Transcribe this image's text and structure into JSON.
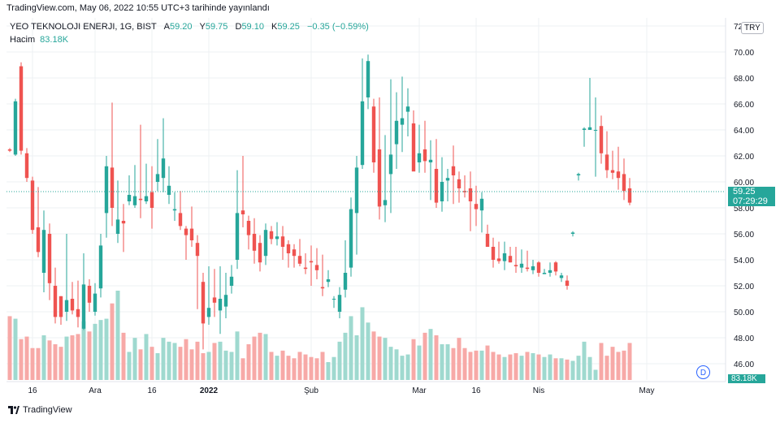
{
  "header": {
    "published": "TradingView.com, May 06, 2022 10:55 UTC+3 tarihinde yayınlandı"
  },
  "legend": {
    "symbol": "YEO TEKNOLOJI ENERJI, 1G, BIST",
    "open_label": "A",
    "open": "59.20",
    "high_label": "Y",
    "high": "59.75",
    "low_label": "D",
    "low": "59.10",
    "close_label": "K",
    "close": "59.25",
    "change": "−0.35 (−0.59%)",
    "volume_label": "Hacim",
    "volume": "83.18K",
    "currency": "TRY"
  },
  "price_tag": {
    "price": "59.25",
    "countdown": "07:29:29"
  },
  "volume_tag": "83.18K",
  "footer": {
    "brand": "TradingView"
  },
  "badge": "D",
  "colors": {
    "up": "#26a69a",
    "down": "#ef5350",
    "up_vol": "#9fd9cf",
    "down_vol": "#f7a9a7",
    "grid": "#eef0f3"
  },
  "chart_data": {
    "type": "candlestick",
    "ylim": [
      45,
      72
    ],
    "y_ticks": [
      "46.00",
      "48.00",
      "50.00",
      "52.00",
      "54.00",
      "56.00",
      "58.00",
      "60.00",
      "62.00",
      "64.00",
      "66.00",
      "68.00",
      "70.00",
      "72"
    ],
    "x_labels": [
      {
        "label": "16",
        "index": 4
      },
      {
        "label": "Ara",
        "index": 15
      },
      {
        "label": "16",
        "index": 25
      },
      {
        "label": "2022",
        "index": 35
      },
      {
        "label": "Şub",
        "index": 53
      },
      {
        "label": "Mar",
        "index": 72
      },
      {
        "label": "16",
        "index": 82
      },
      {
        "label": "Nis",
        "index": 93
      },
      {
        "label": "May",
        "index": 112
      }
    ],
    "current_price": 59.25,
    "candles": [
      [
        62.5,
        62.6,
        62.3,
        62.4,
        5
      ],
      [
        62.1,
        66.4,
        62.0,
        66.2,
        4.8
      ],
      [
        68.9,
        69.2,
        62.1,
        62.4,
        3.2
      ],
      [
        62.2,
        62.6,
        60.0,
        60.3,
        3.4
      ],
      [
        60.1,
        60.4,
        56.0,
        56.3,
        2.5
      ],
      [
        56.5,
        59.6,
        54.2,
        54.6,
        2.5
      ],
      [
        53.0,
        57.8,
        51.5,
        56.3,
        3.5
      ],
      [
        56.0,
        56.8,
        50.9,
        52.2,
        3.1
      ],
      [
        52.0,
        53.4,
        49.1,
        49.6,
        2.8
      ],
      [
        51.2,
        51.2,
        49.0,
        49.6,
        2.6
      ],
      [
        50.0,
        56.0,
        49.3,
        50.9,
        3.4
      ],
      [
        51.0,
        52.3,
        49.8,
        50.1,
        3.5
      ],
      [
        50.2,
        52.4,
        48.8,
        49.6,
        3.6
      ],
      [
        48.7,
        54.5,
        48.6,
        52.1,
        4.6
      ],
      [
        52.0,
        52.5,
        50.0,
        50.7,
        3.8
      ],
      [
        50.0,
        52.2,
        49.7,
        51.4,
        4.4
      ],
      [
        51.8,
        56.0,
        51.1,
        55.1,
        4.7
      ],
      [
        57.6,
        62.0,
        55.7,
        61.2,
        4.8
      ],
      [
        61.1,
        66.1,
        56.6,
        58.0,
        6.0
      ],
      [
        56.0,
        60.1,
        55.3,
        57.1,
        7.0
      ],
      [
        57.0,
        58.3,
        54.6,
        56.8,
        3.7
      ],
      [
        58.5,
        60.5,
        58.2,
        59.0,
        2.2
      ],
      [
        58.2,
        61.3,
        58.0,
        58.9,
        3.3
      ],
      [
        58.7,
        64.4,
        57.2,
        58.6,
        2.4
      ],
      [
        58.5,
        61.4,
        58.3,
        58.9,
        3.6
      ],
      [
        59.2,
        61.2,
        56.4,
        58.0,
        2.6
      ],
      [
        60.0,
        63.3,
        59.3,
        60.6,
        2.1
      ],
      [
        60.3,
        64.9,
        59.2,
        61.8,
        3.3
      ],
      [
        59.0,
        61.2,
        58.3,
        59.7,
        3.0
      ],
      [
        57.8,
        59.2,
        57.0,
        57.9,
        2.9
      ],
      [
        57.6,
        59.3,
        56.3,
        56.6,
        2.6
      ],
      [
        56.4,
        56.6,
        54.0,
        55.9,
        3.2
      ],
      [
        56.4,
        58.1,
        55.0,
        55.5,
        2.4
      ],
      [
        55.3,
        55.9,
        50.2,
        54.3,
        3.0
      ],
      [
        52.3,
        53.0,
        47.1,
        49.1,
        2.1
      ],
      [
        49.6,
        53.5,
        49.0,
        50.3,
        2.2
      ],
      [
        51.1,
        53.3,
        49.6,
        50.7,
        2.9
      ],
      [
        50.1,
        53.5,
        48.3,
        51.0,
        3.0
      ],
      [
        50.4,
        53.0,
        49.5,
        51.3,
        2.3
      ],
      [
        52.0,
        53.6,
        51.4,
        52.7,
        2.2
      ],
      [
        54.0,
        60.9,
        53.3,
        57.6,
        3.8
      ],
      [
        57.8,
        62.0,
        56.5,
        57.5,
        1.7
      ],
      [
        57.0,
        57.4,
        54.8,
        55.9,
        2.8
      ],
      [
        56.0,
        57.2,
        53.7,
        54.7,
        3.4
      ],
      [
        55.3,
        55.9,
        53.1,
        53.8,
        3.7
      ],
      [
        54.3,
        56.8,
        53.6,
        56.3,
        3.6
      ],
      [
        56.2,
        56.6,
        55.2,
        55.6,
        2.2
      ],
      [
        55.6,
        56.9,
        55.1,
        55.8,
        1.9
      ],
      [
        55.8,
        56.6,
        54.0,
        55.0,
        2.3
      ],
      [
        55.2,
        55.5,
        53.4,
        54.5,
        1.9
      ],
      [
        54.8,
        55.2,
        53.4,
        54.3,
        1.7
      ],
      [
        54.3,
        55.6,
        53.5,
        53.7,
        2.2
      ],
      [
        53.4,
        54.5,
        52.9,
        53.3,
        2.0
      ],
      [
        53.9,
        55.1,
        52.0,
        53.8,
        1.8
      ],
      [
        53.6,
        54.9,
        52.5,
        53.2,
        1.7
      ],
      [
        51.9,
        54.4,
        51.2,
        51.8,
        2.2
      ],
      [
        52.3,
        53.2,
        51.9,
        52.5,
        1.4
      ],
      [
        51.0,
        51.2,
        50.3,
        51.0,
        1.8
      ],
      [
        50.0,
        51.9,
        49.5,
        51.3,
        3.0
      ],
      [
        51.7,
        55.5,
        51.1,
        53.0,
        3.7
      ],
      [
        53.4,
        58.8,
        52.7,
        57.9,
        5.0
      ],
      [
        57.6,
        62.0,
        54.4,
        61.1,
        3.5
      ],
      [
        61.3,
        69.5,
        61.0,
        66.2,
        5.7
      ],
      [
        66.5,
        69.8,
        65.6,
        69.3,
        4.5
      ],
      [
        65.8,
        66.4,
        60.7,
        61.5,
        3.8
      ],
      [
        62.5,
        66.5,
        57.1,
        58.1,
        3.4
      ],
      [
        58.2,
        63.6,
        56.9,
        58.6,
        3.3
      ],
      [
        60.6,
        67.9,
        57.6,
        62.1,
        2.6
      ],
      [
        62.9,
        66.9,
        61.0,
        64.7,
        2.4
      ],
      [
        64.4,
        68.1,
        62.3,
        64.9,
        1.9
      ],
      [
        65.4,
        67.2,
        63.5,
        65.8,
        2.0
      ],
      [
        64.5,
        65.5,
        60.9,
        60.8,
        3.2
      ],
      [
        61.5,
        64.4,
        60.7,
        62.2,
        2.7
      ],
      [
        62.5,
        64.7,
        60.7,
        61.6,
        3.7
      ],
      [
        61.5,
        63.2,
        58.6,
        61.7,
        4.0
      ],
      [
        61.0,
        63.3,
        58.0,
        58.4,
        3.5
      ],
      [
        58.5,
        61.9,
        57.7,
        60.0,
        2.8
      ],
      [
        60.1,
        61.0,
        58.5,
        60.3,
        2.8
      ],
      [
        61.2,
        62.8,
        58.3,
        60.5,
        2.5
      ],
      [
        60.2,
        60.8,
        58.4,
        59.5,
        3.3
      ],
      [
        59.3,
        60.5,
        58.8,
        59.2,
        2.5
      ],
      [
        59.5,
        60.8,
        56.2,
        58.5,
        2.2
      ],
      [
        58.3,
        59.7,
        56.6,
        57.9,
        2.3
      ],
      [
        57.8,
        59.2,
        56.1,
        58.7,
        2.3
      ],
      [
        56.0,
        56.7,
        55.2,
        55.0,
        2.7
      ],
      [
        55.0,
        55.7,
        53.4,
        54.0,
        2.2
      ],
      [
        54.1,
        55.4,
        53.7,
        53.9,
        2.0
      ],
      [
        53.9,
        55.4,
        53.2,
        54.5,
        1.8
      ],
      [
        54.3,
        55.0,
        53.8,
        53.8,
        2.0
      ],
      [
        53.6,
        55.0,
        53.0,
        53.5,
        2.1
      ],
      [
        53.4,
        54.8,
        53.0,
        53.7,
        1.9
      ],
      [
        53.4,
        54.7,
        53.1,
        53.3,
        2.2
      ],
      [
        53.2,
        54.0,
        52.9,
        53.5,
        2.1
      ],
      [
        53.8,
        53.9,
        52.7,
        53.0,
        2.0
      ],
      [
        52.9,
        53.3,
        52.9,
        53.0,
        1.8
      ],
      [
        53.0,
        53.8,
        52.7,
        53.2,
        2.0
      ],
      [
        53.8,
        53.9,
        52.8,
        53.1,
        1.7
      ],
      [
        52.6,
        53.0,
        52.3,
        52.8,
        1.7
      ],
      [
        52.4,
        52.8,
        51.7,
        52.0,
        1.6
      ],
      [
        56.0,
        56.2,
        55.8,
        56.1,
        1.5
      ],
      [
        60.5,
        60.7,
        60.1,
        60.6,
        1.9
      ],
      [
        64.0,
        64.2,
        62.7,
        64.1,
        3.0
      ],
      [
        64.0,
        68.0,
        64.0,
        64.2,
        1.8
      ],
      [
        64.0,
        66.5,
        60.4,
        64.0,
        0.8
      ],
      [
        64.3,
        65.1,
        61.4,
        62.2,
        2.9
      ],
      [
        62.1,
        63.9,
        60.3,
        60.9,
        1.9
      ],
      [
        60.9,
        62.4,
        60.2,
        60.7,
        2.6
      ],
      [
        60.8,
        62.7,
        59.4,
        60.3,
        2.2
      ],
      [
        60.6,
        61.8,
        58.6,
        59.3,
        2.3
      ],
      [
        59.5,
        60.3,
        58.2,
        58.4,
        2.9
      ]
    ]
  }
}
